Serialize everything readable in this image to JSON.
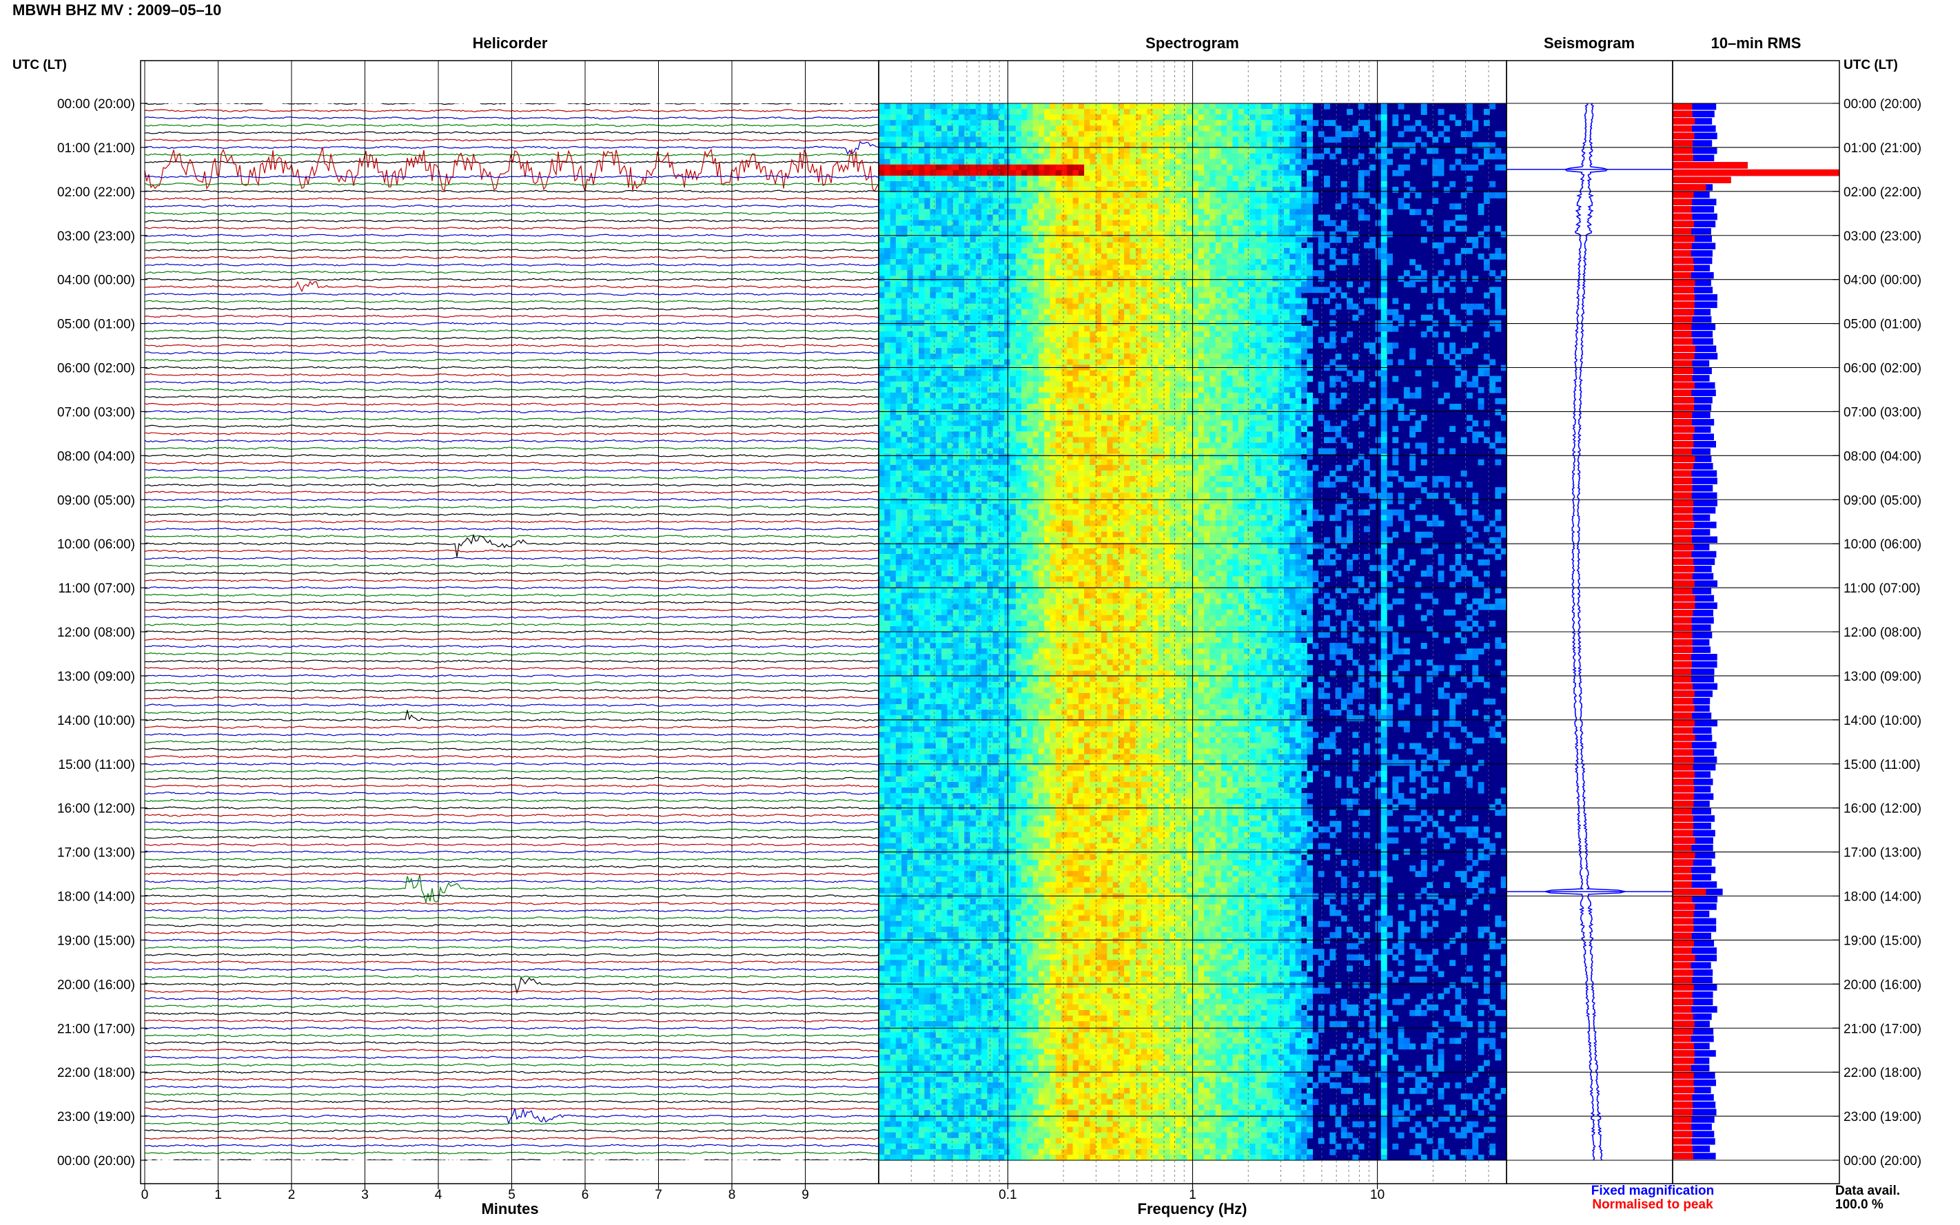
{
  "header": {
    "title": "MBWH BHZ MV : 2009–05–10"
  },
  "colors": {
    "trace_cycle": [
      "#000000",
      "#c00000",
      "#0000c8",
      "#008000"
    ],
    "spectrogram_low": "#00008c",
    "spectrogram_mid": "#e6e617",
    "spectrogram_high": "#e61a00",
    "seismogram": "#0000ff",
    "rms_fixed": "#0000ff",
    "rms_normalised": "#ff0000"
  },
  "chart_data": [
    {
      "type": "line",
      "panel": "helicorder",
      "title": "Helicorder",
      "xlabel": "Minutes",
      "ylabel": "UTC (LT)",
      "xlim": [
        0,
        10
      ],
      "x_ticks": [
        "0",
        "1",
        "2",
        "3",
        "4",
        "5",
        "6",
        "7",
        "8",
        "9"
      ],
      "lines_per_hour": 6,
      "hours": 24,
      "hour_labels": [
        "00:00 (20:00)",
        "01:00 (21:00)",
        "02:00 (22:00)",
        "03:00 (23:00)",
        "04:00 (00:00)",
        "05:00 (01:00)",
        "06:00 (02:00)",
        "07:00 (03:00)",
        "08:00 (04:00)",
        "09:00 (05:00)",
        "10:00 (06:00)",
        "11:00 (07:00)",
        "12:00 (08:00)",
        "13:00 (09:00)",
        "14:00 (10:00)",
        "15:00 (11:00)",
        "16:00 (12:00)",
        "17:00 (13:00)",
        "18:00 (14:00)",
        "19:00 (15:00)",
        "20:00 (16:00)",
        "21:00 (17:00)",
        "22:00 (18:00)",
        "23:00 (19:00)",
        "00:00 (20:00)"
      ],
      "events": [
        {
          "hour": 1.0,
          "minute": 9.6,
          "amp": 1.4,
          "dur": 0.35
        },
        {
          "hour": 1.5,
          "minute": 0.0,
          "amp": 2.2,
          "dur": 10.0
        },
        {
          "hour": 4.1,
          "minute": 2.1,
          "amp": 1.3,
          "dur": 0.4
        },
        {
          "hour": 10.0,
          "minute": 4.3,
          "amp": 1.6,
          "dur": 0.9
        },
        {
          "hour": 14.0,
          "minute": 3.6,
          "amp": 1.2,
          "dur": 0.2
        },
        {
          "hour": 17.85,
          "minute": 3.6,
          "amp": 3.5,
          "dur": 0.7
        },
        {
          "hour": 20.0,
          "minute": 5.1,
          "amp": 1.3,
          "dur": 0.3
        },
        {
          "hour": 23.0,
          "minute": 5.0,
          "amp": 1.5,
          "dur": 0.8
        }
      ]
    },
    {
      "type": "heatmap",
      "panel": "spectrogram",
      "title": "Spectrogram",
      "xlabel": "Frequency (Hz)",
      "x_scale": "log",
      "xlim": [
        0.02,
        50
      ],
      "x_ticks": [
        {
          "value": 0.1,
          "label": "0.1"
        },
        {
          "value": 1,
          "label": "1"
        },
        {
          "value": 10,
          "label": "10"
        }
      ],
      "ylim_hours": [
        0,
        24
      ],
      "features": [
        {
          "hour": 1.5,
          "freq_min": 0.02,
          "freq_max": 0.25,
          "level": "high"
        },
        {
          "freq": 11,
          "level": "narrow-band line"
        }
      ]
    },
    {
      "type": "line",
      "panel": "seismogram",
      "title": "Seismogram",
      "ylim_hours": [
        0,
        24
      ],
      "hourly_amplitude": [
        0.45,
        0.55,
        0.9,
        0.4,
        0.4,
        0.4,
        0.4,
        0.4,
        0.4,
        0.4,
        0.4,
        0.4,
        0.4,
        0.4,
        0.4,
        0.45,
        0.45,
        0.45,
        0.6,
        0.45,
        0.45,
        0.45,
        0.45,
        0.5
      ],
      "spikes": [
        {
          "hour": 1.5,
          "amp": 3.2
        },
        {
          "hour": 17.9,
          "amp": 3.6
        }
      ]
    },
    {
      "type": "bar",
      "panel": "rms",
      "title": "10–min RMS",
      "right_label": "UTC (LT)",
      "legend": [
        {
          "name": "Fixed magnification",
          "color": "#0000ff"
        },
        {
          "name": "Normalised to peak",
          "color": "#ff0000"
        }
      ],
      "rms_normalised_base": 0.11,
      "rms_fixed_base": 0.22,
      "rms_peaks": [
        {
          "hour": 1.33,
          "normalised": 0.45,
          "fixed": 0.45
        },
        {
          "hour": 1.5,
          "normalised": 1.0,
          "fixed": 1.0
        },
        {
          "hour": 1.67,
          "normalised": 0.35,
          "fixed": 0.35
        },
        {
          "hour": 1.83,
          "normalised": 0.2,
          "fixed": 0.24
        },
        {
          "hour": 17.83,
          "normalised": 0.2,
          "fixed": 0.3
        }
      ]
    }
  ],
  "footer": {
    "data_avail_label": "Data avail.",
    "data_avail_value": "100.0 %"
  }
}
